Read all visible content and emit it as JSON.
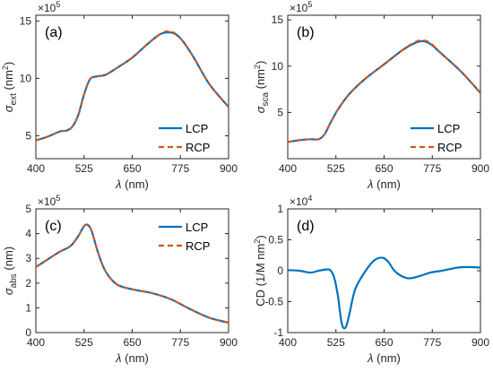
{
  "chart_data": [
    {
      "type": "line",
      "panel_label": "(a)",
      "xlabel_symbol": "λ",
      "xlabel_unit": " (nm)",
      "ylabel_symbol": "σ",
      "ylabel_sub": "ext",
      "ylabel_unit": " (nm",
      "ylabel_sup": "2",
      "ylabel_close": ")",
      "exponent_base": "×10",
      "exponent_power": "5",
      "xlim": [
        400,
        900
      ],
      "ylim": [
        3,
        15.5
      ],
      "xticks": [
        400,
        525,
        650,
        775,
        900
      ],
      "xtick_labels": [
        "400",
        "525",
        "650",
        "775",
        "900"
      ],
      "yticks": [
        5,
        10,
        15
      ],
      "ytick_labels": [
        "5",
        "10",
        "15"
      ],
      "legend": {
        "position": "bottom-right",
        "entries": [
          "LCP",
          "RCP"
        ]
      },
      "x": [
        400,
        425,
        450,
        465,
        480,
        495,
        510,
        525,
        540,
        555,
        580,
        610,
        650,
        690,
        720,
        740,
        760,
        780,
        810,
        850,
        900
      ],
      "series": [
        {
          "name": "LCP",
          "color": "#0072BD",
          "style": "solid",
          "values": [
            4.6,
            4.85,
            5.2,
            5.4,
            5.45,
            5.8,
            6.8,
            8.6,
            9.9,
            10.15,
            10.3,
            10.9,
            11.8,
            13.0,
            13.8,
            14.0,
            13.9,
            13.3,
            11.8,
            9.5,
            7.5
          ]
        },
        {
          "name": "RCP",
          "color": "#D95319",
          "style": "dashed",
          "values": [
            4.6,
            4.85,
            5.2,
            5.4,
            5.45,
            5.8,
            6.8,
            8.6,
            9.9,
            10.15,
            10.3,
            10.9,
            11.8,
            13.0,
            13.8,
            14.1,
            13.95,
            13.3,
            11.8,
            9.5,
            7.5
          ]
        }
      ]
    },
    {
      "type": "line",
      "panel_label": "(b)",
      "xlabel_symbol": "λ",
      "xlabel_unit": " (nm)",
      "ylabel_symbol": "σ",
      "ylabel_sub": "sca",
      "ylabel_unit": " (nm",
      "ylabel_sup": "2",
      "ylabel_close": ")",
      "exponent_base": "×10",
      "exponent_power": "5",
      "xlim": [
        400,
        900
      ],
      "ylim": [
        0,
        15.5
      ],
      "xticks": [
        400,
        525,
        650,
        775,
        900
      ],
      "xtick_labels": [
        "400",
        "525",
        "650",
        "775",
        "900"
      ],
      "yticks": [
        5,
        10,
        15
      ],
      "ytick_labels": [
        "5",
        "10",
        "15"
      ],
      "legend": {
        "position": "bottom-right",
        "entries": [
          "LCP",
          "RCP"
        ]
      },
      "x": [
        400,
        430,
        460,
        480,
        495,
        510,
        530,
        560,
        600,
        650,
        700,
        730,
        750,
        770,
        800,
        850,
        900
      ],
      "series": [
        {
          "name": "LCP",
          "color": "#0072BD",
          "style": "solid",
          "values": [
            1.8,
            2.0,
            2.1,
            2.1,
            2.6,
            3.8,
            5.3,
            7.0,
            8.6,
            10.2,
            11.8,
            12.5,
            12.7,
            12.4,
            11.3,
            9.4,
            7.1
          ]
        },
        {
          "name": "RCP",
          "color": "#D95319",
          "style": "dashed",
          "values": [
            1.8,
            2.0,
            2.1,
            2.1,
            2.6,
            3.8,
            5.3,
            7.0,
            8.6,
            10.2,
            11.8,
            12.6,
            12.8,
            12.5,
            11.3,
            9.4,
            7.1
          ]
        }
      ]
    },
    {
      "type": "line",
      "panel_label": "(c)",
      "xlabel_symbol": "λ",
      "xlabel_unit": " (nm)",
      "ylabel_symbol": "σ",
      "ylabel_sub": "abs",
      "ylabel_unit": " (nm)",
      "ylabel_sup": "",
      "ylabel_close": "",
      "exponent_base": "×10",
      "exponent_power": "5",
      "xlim": [
        400,
        900
      ],
      "ylim": [
        0,
        5
      ],
      "xticks": [
        400,
        525,
        650,
        775,
        900
      ],
      "xtick_labels": [
        "400",
        "525",
        "650",
        "775",
        "900"
      ],
      "yticks": [
        0,
        1,
        2,
        3,
        4,
        5
      ],
      "ytick_labels": [
        "0",
        "1",
        "2",
        "3",
        "4",
        "5"
      ],
      "legend": {
        "position": "top-right",
        "entries": [
          "LCP",
          "RCP"
        ]
      },
      "x": [
        400,
        430,
        460,
        490,
        510,
        525,
        535,
        545,
        560,
        580,
        610,
        650,
        700,
        750,
        800,
        850,
        900
      ],
      "series": [
        {
          "name": "LCP",
          "color": "#0072BD",
          "style": "solid",
          "values": [
            2.65,
            2.95,
            3.25,
            3.5,
            3.9,
            4.3,
            4.35,
            4.1,
            3.3,
            2.5,
            1.95,
            1.75,
            1.6,
            1.35,
            0.95,
            0.6,
            0.4
          ]
        },
        {
          "name": "RCP",
          "color": "#D95319",
          "style": "dashed",
          "values": [
            2.65,
            2.95,
            3.25,
            3.5,
            3.9,
            4.3,
            4.35,
            4.1,
            3.3,
            2.5,
            1.95,
            1.75,
            1.6,
            1.35,
            0.95,
            0.6,
            0.4
          ]
        }
      ]
    },
    {
      "type": "line",
      "panel_label": "(d)",
      "xlabel_symbol": "λ",
      "xlabel_unit": " (nm)",
      "ylabel_text": "CD (1/M nm",
      "ylabel_sup": "2",
      "ylabel_close": ")",
      "exponent_base": "×10",
      "exponent_power": "4",
      "xlim": [
        400,
        900
      ],
      "ylim": [
        -1,
        1
      ],
      "xticks": [
        400,
        525,
        650,
        775,
        900
      ],
      "xtick_labels": [
        "400",
        "525",
        "650",
        "775",
        "900"
      ],
      "yticks": [
        -1,
        -0.5,
        0,
        0.5,
        1
      ],
      "ytick_labels": [
        "-1",
        "-0.5",
        "0",
        "0.5",
        "1"
      ],
      "x": [
        400,
        430,
        460,
        480,
        500,
        510,
        520,
        530,
        540,
        550,
        560,
        575,
        600,
        625,
        645,
        660,
        680,
        710,
        740,
        770,
        800,
        840,
        870,
        900
      ],
      "series": [
        {
          "name": "CD",
          "color": "#0072BD",
          "style": "solid",
          "values": [
            0.01,
            0.0,
            -0.03,
            0.0,
            0.02,
            0.01,
            -0.1,
            -0.4,
            -0.85,
            -0.92,
            -0.7,
            -0.3,
            -0.02,
            0.17,
            0.21,
            0.15,
            -0.02,
            -0.12,
            -0.09,
            -0.03,
            0.0,
            0.05,
            0.06,
            0.05
          ]
        }
      ]
    }
  ]
}
